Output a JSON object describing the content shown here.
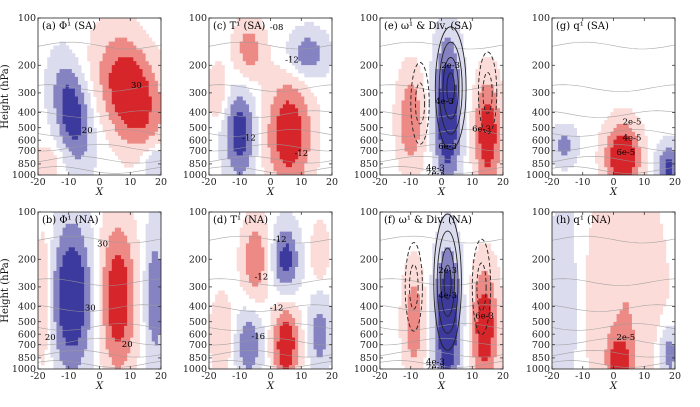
{
  "colors": {
    "red_dark": "#d7262b",
    "red_mid": "#ee8a86",
    "red_light": "#fbdcd9",
    "blue_dark": "#3d3a9e",
    "blue_mid": "#8683c2",
    "blue_light": "#dcdcef",
    "neutral": "#ffffff",
    "contour_gray": "#9a9a9a",
    "contour_black": "#222222"
  },
  "chart_data": [
    {
      "id": "a",
      "type": "heatmap",
      "title": "(a) Φ¹ (SA)",
      "xlabel": "X",
      "ylabel": "Height (hPa)",
      "xlim": [
        -20,
        20
      ],
      "xticks": [
        -20,
        -10,
        0,
        10,
        20
      ],
      "ylim": [
        1000,
        100
      ],
      "yscale": "log",
      "yticks": [
        100,
        200,
        300,
        400,
        500,
        600,
        700,
        850,
        1000
      ],
      "show_yaxis": true,
      "field_blobs": [
        {
          "x": 10,
          "p": 300,
          "sx": 6.5,
          "sp": 0.55,
          "amp": 1.0,
          "tilt": -4
        },
        {
          "x": -9,
          "p": 400,
          "sx": 4.0,
          "sp": 0.5,
          "amp": -0.85,
          "tilt": -3
        },
        {
          "x": 18,
          "p": 850,
          "sx": 3.0,
          "sp": 0.2,
          "amp": -0.45,
          "tilt": 0
        },
        {
          "x": -17,
          "p": 850,
          "sx": 3.0,
          "sp": 0.2,
          "amp": 0.3,
          "tilt": 0
        }
      ],
      "gray_contours": true,
      "contour_labels": [
        {
          "text": "30",
          "x": 12,
          "p": 270
        },
        {
          "text": "20",
          "x": -4,
          "p": 520
        }
      ]
    },
    {
      "id": "c",
      "type": "heatmap",
      "title": "(c) T¹ (SA)",
      "xlabel": "X",
      "ylabel": "",
      "xlim": [
        -20,
        20
      ],
      "xticks": [
        -20,
        -10,
        0,
        10,
        20
      ],
      "ylim": [
        1000,
        100
      ],
      "yscale": "log",
      "yticks": [
        100,
        200,
        300,
        400,
        500,
        600,
        700,
        850,
        1000
      ],
      "show_yaxis": false,
      "field_blobs": [
        {
          "x": 6,
          "p": 550,
          "sx": 5.0,
          "sp": 0.55,
          "amp": 0.9,
          "tilt": 0
        },
        {
          "x": -10,
          "p": 550,
          "sx": 3.5,
          "sp": 0.45,
          "amp": -0.8,
          "tilt": 0
        },
        {
          "x": 12,
          "p": 170,
          "sx": 4.5,
          "sp": 0.25,
          "amp": -0.55,
          "tilt": 0
        },
        {
          "x": -7,
          "p": 160,
          "sx": 3.5,
          "sp": 0.3,
          "amp": 0.5,
          "tilt": 0
        },
        {
          "x": -17,
          "p": 300,
          "sx": 2.5,
          "sp": 0.3,
          "amp": 0.3,
          "tilt": 0
        }
      ],
      "gray_contours": true,
      "contour_labels": [
        {
          "text": "-08",
          "x": 2,
          "p": 115
        },
        {
          "text": "-12",
          "x": 7,
          "p": 185
        },
        {
          "text": "-12",
          "x": -7,
          "p": 580
        },
        {
          "text": "-12",
          "x": 10,
          "p": 730
        }
      ]
    },
    {
      "id": "e",
      "type": "heatmap",
      "title": "(e) ω¹ & Div. (SA)",
      "xlabel": "X",
      "ylabel": "",
      "xlim": [
        -20,
        20
      ],
      "xticks": [
        -20,
        -10,
        0,
        10,
        20
      ],
      "ylim": [
        1000,
        100
      ],
      "yscale": "log",
      "yticks": [
        100,
        200,
        300,
        400,
        500,
        600,
        700,
        850,
        1000
      ],
      "show_yaxis": false,
      "field_blobs": [
        {
          "x": 2,
          "p": 400,
          "sx": 3.0,
          "sp": 0.75,
          "amp": -1.0,
          "tilt": 0
        },
        {
          "x": -10,
          "p": 450,
          "sx": 3.0,
          "sp": 0.5,
          "amp": 0.6,
          "tilt": 0
        },
        {
          "x": 15,
          "p": 550,
          "sx": 3.0,
          "sp": 0.55,
          "amp": 0.9,
          "tilt": 0
        }
      ],
      "black_rings": [
        {
          "x": 3,
          "p": 280,
          "sx": 5.0,
          "sp": 0.9,
          "n": 4,
          "dashed": false
        },
        {
          "x": -7,
          "p": 350,
          "sx": 3.0,
          "sp": 0.6,
          "n": 2,
          "dashed": true
        },
        {
          "x": 15,
          "p": 300,
          "sx": 3.0,
          "sp": 0.6,
          "n": 2,
          "dashed": true
        }
      ],
      "gray_contours": true,
      "contour_labels": [
        {
          "text": "2e-3",
          "x": 3,
          "p": 200
        },
        {
          "text": "4e-3",
          "x": 1,
          "p": 340
        },
        {
          "text": "6e-3",
          "x": 13,
          "p": 510
        },
        {
          "text": "6e-3",
          "x": 2,
          "p": 660
        },
        {
          "text": "4e-3",
          "x": -2,
          "p": 900
        },
        {
          "text": "2e-3",
          "x": -2,
          "p": 975
        }
      ]
    },
    {
      "id": "g",
      "type": "heatmap",
      "title": "(g) q¹ (SA)",
      "xlabel": "X",
      "ylabel": "",
      "xlim": [
        -20,
        20
      ],
      "xticks": [
        -20,
        -10,
        0,
        10,
        20
      ],
      "ylim": [
        1000,
        100
      ],
      "yscale": "log",
      "yticks": [
        100,
        200,
        300,
        400,
        500,
        600,
        700,
        850,
        1000
      ],
      "show_yaxis": false,
      "field_blobs": [
        {
          "x": 3,
          "p": 780,
          "sx": 4.0,
          "sp": 0.35,
          "amp": 1.0,
          "tilt": 0
        },
        {
          "x": -16,
          "p": 650,
          "sx": 3.0,
          "sp": 0.2,
          "amp": -0.45,
          "tilt": 0
        },
        {
          "x": 18,
          "p": 900,
          "sx": 3.0,
          "sp": 0.25,
          "amp": -0.7,
          "tilt": 0
        }
      ],
      "gray_contours": true,
      "contour_labels": [
        {
          "text": "2e-5",
          "x": 6,
          "p": 460
        },
        {
          "text": "4e-5",
          "x": 6,
          "p": 580
        },
        {
          "text": "6e-5",
          "x": 4,
          "p": 720
        }
      ]
    },
    {
      "id": "b",
      "type": "heatmap",
      "title": "(b) Φ¹ (NA)",
      "xlabel": "X",
      "ylabel": "Height (hPa)",
      "xlim": [
        -20,
        20
      ],
      "xticks": [
        -20,
        -10,
        0,
        10,
        20
      ],
      "ylim": [
        1000,
        100
      ],
      "yscale": "log",
      "yticks": [
        100,
        200,
        300,
        400,
        500,
        600,
        700,
        850,
        1000
      ],
      "show_yaxis": true,
      "field_blobs": [
        {
          "x": -9,
          "p": 350,
          "sx": 4.5,
          "sp": 0.75,
          "amp": -1.0,
          "tilt": 0
        },
        {
          "x": 6,
          "p": 350,
          "sx": 4.0,
          "sp": 0.75,
          "amp": 0.9,
          "tilt": 0
        },
        {
          "x": 18,
          "p": 350,
          "sx": 2.5,
          "sp": 0.75,
          "amp": -0.55,
          "tilt": 0
        },
        {
          "x": -18,
          "p": 350,
          "sx": 2.0,
          "sp": 0.75,
          "amp": 0.35,
          "tilt": 0
        }
      ],
      "gray_contours": true,
      "contour_labels": [
        {
          "text": "30",
          "x": 1,
          "p": 160
        },
        {
          "text": "30",
          "x": -3,
          "p": 410
        },
        {
          "text": "20",
          "x": -16,
          "p": 630
        },
        {
          "text": "20",
          "x": 9,
          "p": 700
        }
      ]
    },
    {
      "id": "d",
      "type": "heatmap",
      "title": "(d) T¹ (NA)",
      "xlabel": "X",
      "ylabel": "",
      "xlim": [
        -20,
        20
      ],
      "xticks": [
        -20,
        -10,
        0,
        10,
        20
      ],
      "ylim": [
        1000,
        100
      ],
      "yscale": "log",
      "yticks": [
        100,
        200,
        300,
        400,
        500,
        600,
        700,
        850,
        1000
      ],
      "show_yaxis": false,
      "field_blobs": [
        {
          "x": 5,
          "p": 700,
          "sx": 3.0,
          "sp": 0.4,
          "amp": 0.9,
          "tilt": 0
        },
        {
          "x": -5,
          "p": 200,
          "sx": 3.0,
          "sp": 0.4,
          "amp": 0.6,
          "tilt": 0
        },
        {
          "x": 5,
          "p": 200,
          "sx": 3.0,
          "sp": 0.35,
          "amp": -0.75,
          "tilt": 0
        },
        {
          "x": -7,
          "p": 700,
          "sx": 3.0,
          "sp": 0.35,
          "amp": -0.6,
          "tilt": 0
        },
        {
          "x": 16,
          "p": 600,
          "sx": 2.5,
          "sp": 0.4,
          "amp": -0.5,
          "tilt": 0
        },
        {
          "x": -16,
          "p": 600,
          "sx": 2.5,
          "sp": 0.4,
          "amp": 0.35,
          "tilt": 0
        },
        {
          "x": 16,
          "p": 180,
          "sx": 2.0,
          "sp": 0.3,
          "amp": 0.35,
          "tilt": 0
        }
      ],
      "gray_contours": true,
      "contour_labels": [
        {
          "text": "-12",
          "x": 3,
          "p": 150
        },
        {
          "text": "-12",
          "x": -3,
          "p": 260
        },
        {
          "text": "-12",
          "x": 2,
          "p": 410
        },
        {
          "text": "-16",
          "x": -4,
          "p": 620
        }
      ]
    },
    {
      "id": "f",
      "type": "heatmap",
      "title": "(f) ω¹ & Div. (NA)",
      "xlabel": "X",
      "ylabel": "",
      "xlim": [
        -20,
        20
      ],
      "xticks": [
        -20,
        -10,
        0,
        10,
        20
      ],
      "ylim": [
        1000,
        100
      ],
      "yscale": "log",
      "yticks": [
        100,
        200,
        300,
        400,
        500,
        600,
        700,
        850,
        1000
      ],
      "show_yaxis": false,
      "field_blobs": [
        {
          "x": 2,
          "p": 500,
          "sx": 3.0,
          "sp": 0.75,
          "amp": -1.0,
          "tilt": 0
        },
        {
          "x": -9,
          "p": 500,
          "sx": 2.5,
          "sp": 0.55,
          "amp": 0.55,
          "tilt": 0
        },
        {
          "x": 14,
          "p": 550,
          "sx": 3.0,
          "sp": 0.6,
          "amp": 0.9,
          "tilt": 0
        }
      ],
      "black_rings": [
        {
          "x": 2,
          "p": 280,
          "sx": 4.5,
          "sp": 1.0,
          "n": 4,
          "dashed": false
        },
        {
          "x": -9,
          "p": 300,
          "sx": 2.8,
          "sp": 0.65,
          "n": 2,
          "dashed": true
        },
        {
          "x": 13,
          "p": 300,
          "sx": 3.0,
          "sp": 0.7,
          "n": 2,
          "dashed": true
        }
      ],
      "gray_contours": true,
      "contour_labels": [
        {
          "text": "2e-3",
          "x": 2,
          "p": 235
        },
        {
          "text": "4e-3",
          "x": 2,
          "p": 340
        },
        {
          "text": "6e-3",
          "x": 14,
          "p": 460
        },
        {
          "text": "4e-3",
          "x": -2,
          "p": 900
        },
        {
          "text": "2e-3",
          "x": -2,
          "p": 975
        }
      ]
    },
    {
      "id": "h",
      "type": "heatmap",
      "title": "(h) q¹ (NA)",
      "xlabel": "X",
      "ylabel": "",
      "xlim": [
        -20,
        20
      ],
      "xticks": [
        -20,
        -10,
        0,
        10,
        20
      ],
      "ylim": [
        1000,
        100
      ],
      "yscale": "log",
      "yticks": [
        100,
        200,
        300,
        400,
        500,
        600,
        700,
        850,
        1000
      ],
      "show_yaxis": false,
      "field_blobs": [
        {
          "x": 4,
          "p": 400,
          "sx": 9.0,
          "sp": 1.3,
          "amp": 0.35,
          "tilt": 0
        },
        {
          "x": 2,
          "p": 900,
          "sx": 2.5,
          "sp": 0.25,
          "amp": 0.7,
          "tilt": 0
        },
        {
          "x": -16,
          "p": 400,
          "sx": 3.0,
          "sp": 1.3,
          "amp": -0.35,
          "tilt": 0
        },
        {
          "x": 18,
          "p": 800,
          "sx": 2.5,
          "sp": 0.3,
          "amp": -0.55,
          "tilt": 0
        }
      ],
      "gray_contours": true,
      "contour_labels": [
        {
          "text": "2e-5",
          "x": 4,
          "p": 630
        }
      ]
    }
  ]
}
